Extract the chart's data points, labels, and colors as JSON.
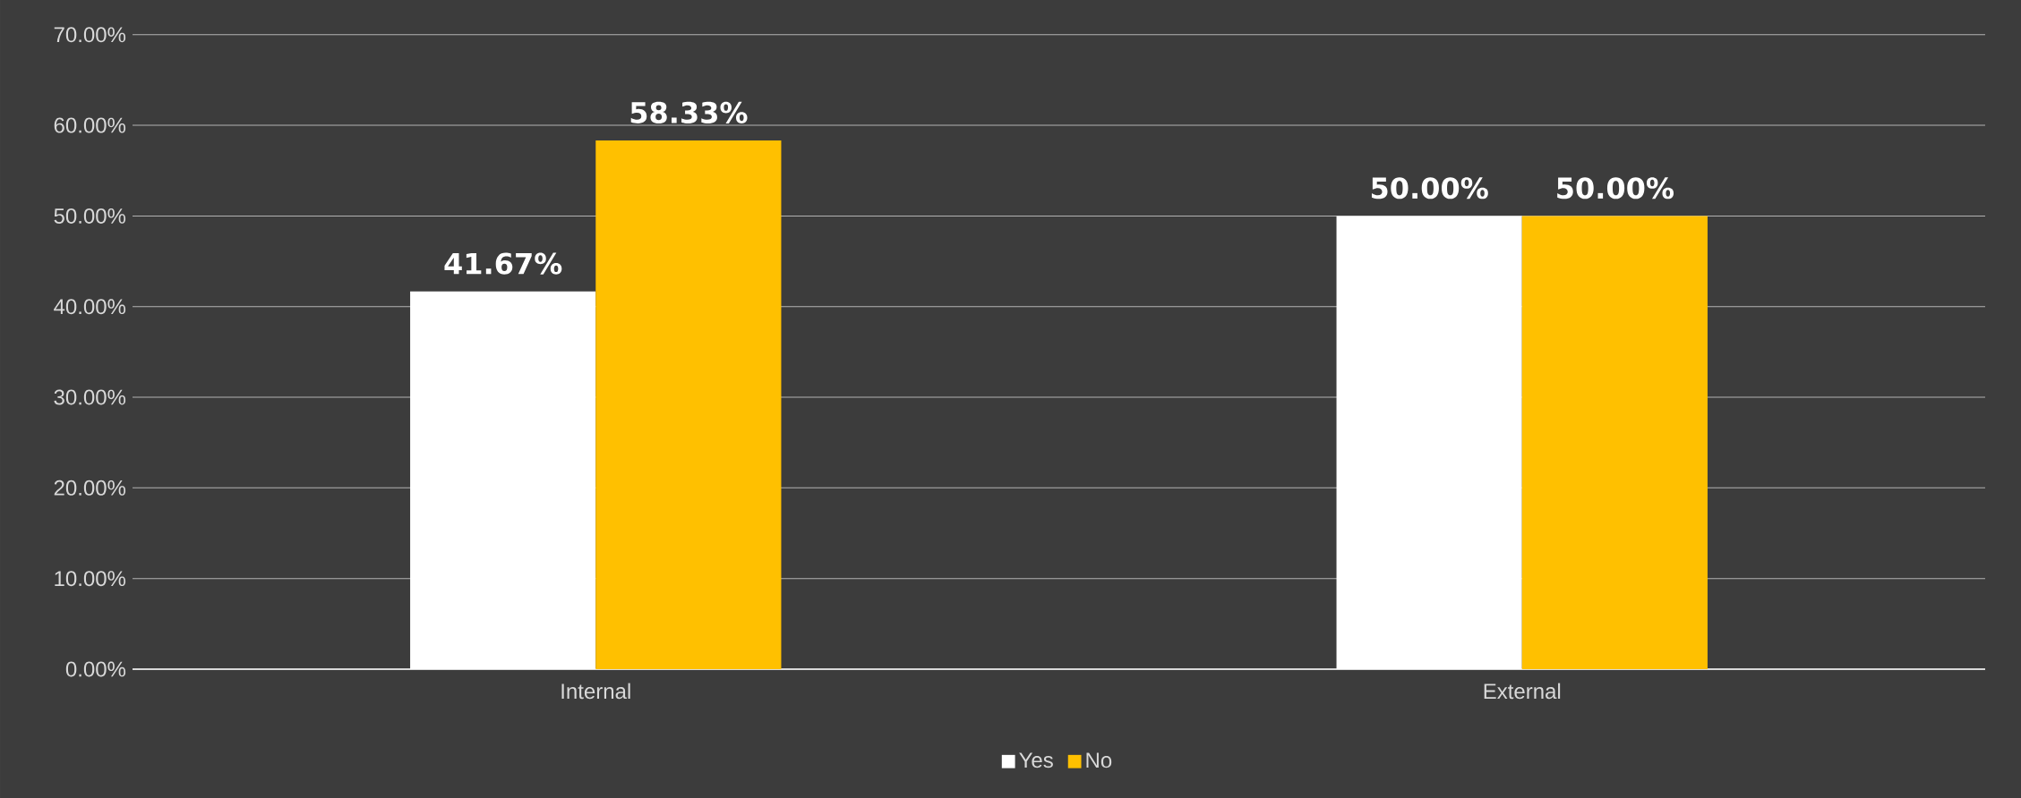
{
  "chart_data": {
    "type": "bar",
    "categories": [
      "Internal",
      "External"
    ],
    "series": [
      {
        "name": "Yes",
        "color": "#ffffff",
        "values": [
          41.67,
          50.0
        ],
        "value_labels": [
          "41.67%",
          "50.00%"
        ]
      },
      {
        "name": "No",
        "color": "#ffc000",
        "values": [
          58.33,
          50.0
        ],
        "value_labels": [
          "58.33%",
          "50.00%"
        ]
      }
    ],
    "ylim": [
      0,
      70
    ],
    "yticks": [
      {
        "value": 0,
        "label": "0.00%"
      },
      {
        "value": 10,
        "label": "10.00%"
      },
      {
        "value": 20,
        "label": "20.00%"
      },
      {
        "value": 30,
        "label": "30.00%"
      },
      {
        "value": 40,
        "label": "40.00%"
      },
      {
        "value": 50,
        "label": "50.00%"
      },
      {
        "value": 60,
        "label": "60.00%"
      },
      {
        "value": 70,
        "label": "70.00%"
      }
    ],
    "grid": "y",
    "legend": "bottom"
  }
}
